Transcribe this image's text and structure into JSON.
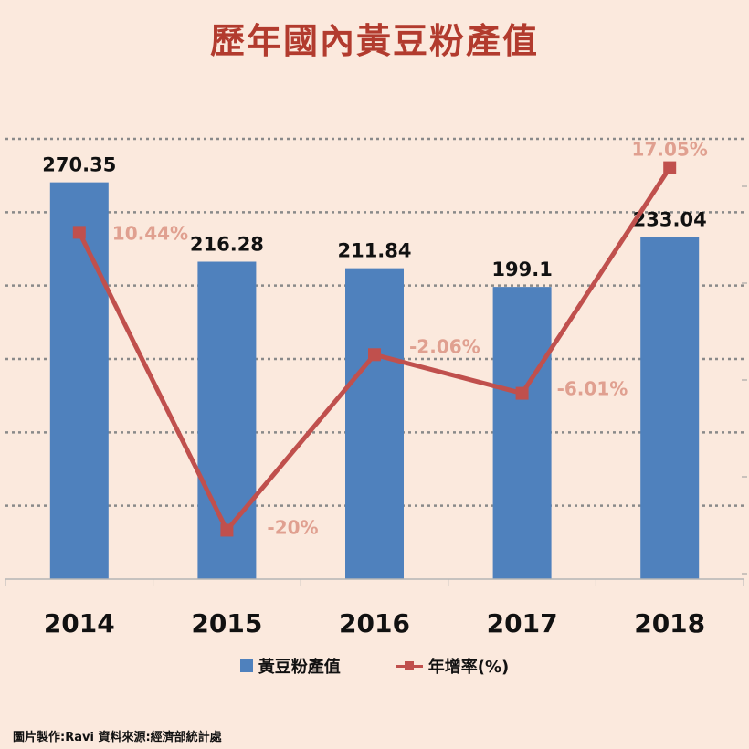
{
  "page": {
    "title": "歷年國內黃豆粉產值",
    "footer": "圖片製作:Ravi   資料來源:經濟部統計處"
  },
  "chart_data": {
    "type": "bar",
    "title": "歷年國內黃豆粉產值",
    "categories": [
      "2014",
      "2015",
      "2016",
      "2017",
      "2018"
    ],
    "series": [
      {
        "name": "黃豆粉產值",
        "type": "bar",
        "color": "#4f81bd",
        "values": [
          270.35,
          216.28,
          211.84,
          199.1,
          233.04
        ],
        "labels": [
          "270.35",
          "216.28",
          "211.84",
          "199.1",
          "233.04"
        ]
      },
      {
        "name": "年增率(%)",
        "type": "line",
        "color": "#c0504d",
        "values": [
          10.44,
          -20,
          -2.06,
          -6.01,
          17.05
        ],
        "labels": [
          "10.44%",
          "-20%",
          "-2.06%",
          "-6.01%",
          "17.05%"
        ]
      }
    ],
    "bar_ylim": [
      0,
      300
    ],
    "line_ylim": [
      -25,
      20
    ],
    "grid": true,
    "legend_position": "bottom"
  }
}
